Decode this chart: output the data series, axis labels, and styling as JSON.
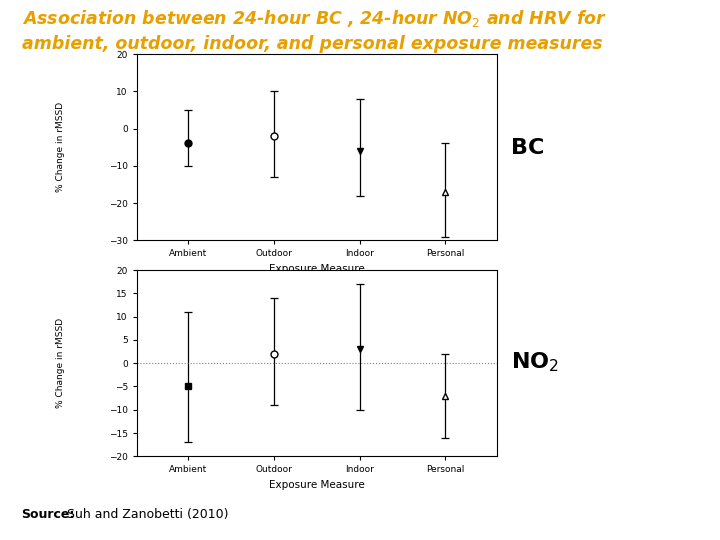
{
  "title_color": "#E8A000",
  "title_fontsize": 12.5,
  "categories": [
    "Ambient",
    "Outdoor",
    "Indoor",
    "Personal"
  ],
  "xlabel": "Exposure Measure",
  "ylabel": "% Change in rMSSD",
  "bc": {
    "values": [
      -4,
      -2,
      -6,
      -17
    ],
    "ci_low": [
      -10,
      -13,
      -18,
      -29
    ],
    "ci_high": [
      5,
      10,
      8,
      -4
    ],
    "markers": [
      "filled_circle",
      "open_circle",
      "filled_triangle_down",
      "open_triangle_up"
    ],
    "ylim": [
      -30,
      20
    ],
    "yticks": [
      -30,
      -20,
      -10,
      0,
      10,
      20
    ]
  },
  "no2": {
    "values": [
      -5,
      2,
      3,
      -7
    ],
    "ci_low": [
      -17,
      -9,
      -10,
      -16
    ],
    "ci_high": [
      11,
      14,
      17,
      2
    ],
    "markers": [
      "filled_square",
      "open_circle",
      "filled_triangle_down",
      "open_triangle_up"
    ],
    "ylim": [
      -20,
      20
    ],
    "yticks": [
      -20,
      -15,
      -10,
      -5,
      0,
      5,
      10,
      15,
      20
    ]
  },
  "source_bold": "Source:",
  "source_normal": " Suh and Zanobetti (2010)",
  "source_fontsize": 9,
  "bc_label": "BC",
  "label_fontsize": 16
}
